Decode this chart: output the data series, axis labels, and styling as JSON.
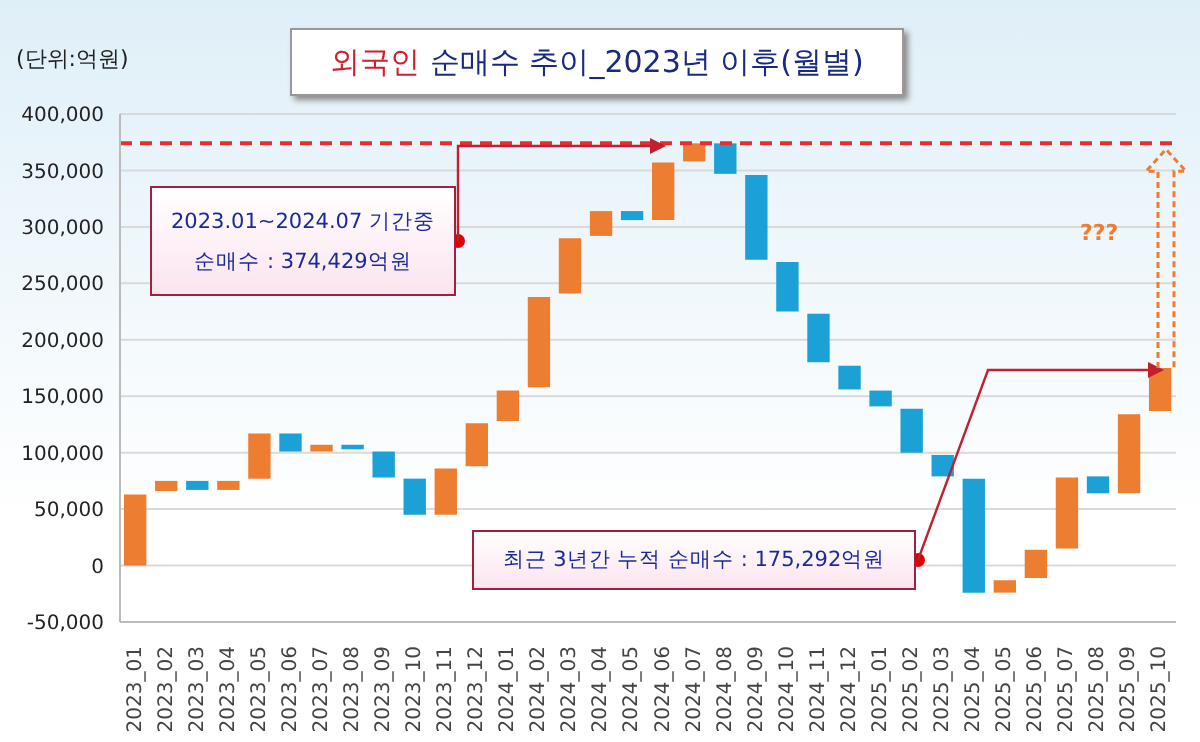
{
  "chart_data": {
    "type": "bar",
    "title": "외국인 순매수 추이_2023년 이후(월별)",
    "ylabel": "(단위:억원)",
    "categories": [
      "2023_01",
      "2023_02",
      "2023_03",
      "2023_04",
      "2023_05",
      "2023_06",
      "2023_07",
      "2023_08",
      "2023_09",
      "2023_10",
      "2023_11",
      "2023_12",
      "2024_01",
      "2024_02",
      "2024_03",
      "2024_04",
      "2024_05",
      "2024_06",
      "2024_07",
      "2024_08",
      "2024_09",
      "2024_10",
      "2024_11",
      "2024_12",
      "2025_01",
      "2025_02",
      "2025_03",
      "2025_04",
      "2025_05",
      "2025_06",
      "2025_07",
      "2025_08",
      "2025_09",
      "2025_10"
    ],
    "base": [
      0,
      66000,
      75000,
      67000,
      77000,
      117000,
      101000,
      107000,
      101000,
      77000,
      45000,
      88000,
      128000,
      158000,
      241000,
      292000,
      314000,
      306000,
      358000,
      374000,
      346000,
      269000,
      223000,
      177000,
      155000,
      139000,
      98000,
      77000,
      -24000,
      -11000,
      15000,
      79000,
      64000,
      137000
    ],
    "values": [
      63000,
      9000,
      -8000,
      8000,
      40000,
      -16000,
      6000,
      -4000,
      -23000,
      -32000,
      41000,
      38000,
      27000,
      80000,
      49000,
      22000,
      -8000,
      51000,
      16000,
      -27000,
      -75000,
      -44000,
      -43000,
      -21000,
      -14000,
      -39000,
      -19000,
      -101000,
      11000,
      25000,
      63000,
      -15000,
      70000,
      38000
    ],
    "colors": [
      "#ed7d31",
      "#ed7d31",
      "#1ba1d5",
      "#ed7d31",
      "#ed7d31",
      "#1ba1d5",
      "#ed7d31",
      "#1ba1d5",
      "#1ba1d5",
      "#1ba1d5",
      "#ed7d31",
      "#ed7d31",
      "#ed7d31",
      "#ed7d31",
      "#ed7d31",
      "#ed7d31",
      "#1ba1d5",
      "#ed7d31",
      "#ed7d31",
      "#1ba1d5",
      "#1ba1d5",
      "#1ba1d5",
      "#1ba1d5",
      "#1ba1d5",
      "#1ba1d5",
      "#1ba1d5",
      "#1ba1d5",
      "#1ba1d5",
      "#ed7d31",
      "#ed7d31",
      "#ed7d31",
      "#1ba1d5",
      "#ed7d31",
      "#ed7d31"
    ],
    "ylim": [
      -50000,
      400000
    ],
    "yticks": [
      {
        "value": -50000,
        "label": "-50,000"
      },
      {
        "value": 0,
        "label": "0"
      },
      {
        "value": 50000,
        "label": "50,000"
      },
      {
        "value": 100000,
        "label": "100,000"
      },
      {
        "value": 150000,
        "label": "150,000"
      },
      {
        "value": 200000,
        "label": "200,000"
      },
      {
        "value": 250000,
        "label": "250,000"
      },
      {
        "value": 300000,
        "label": "300,000"
      },
      {
        "value": 350000,
        "label": "350,000"
      },
      {
        "value": 400000,
        "label": "400,000"
      }
    ],
    "grid": "y",
    "ref_lines": [
      {
        "axis": "y",
        "value": 374000,
        "color": "#e03030",
        "line_style": "dashed"
      }
    ],
    "annotations": [
      "2023.01~2024.07 기간중 순매수 : 374,429억원",
      "최근 3년간 누적 순매수 : 175,292억원",
      "???"
    ]
  }
}
